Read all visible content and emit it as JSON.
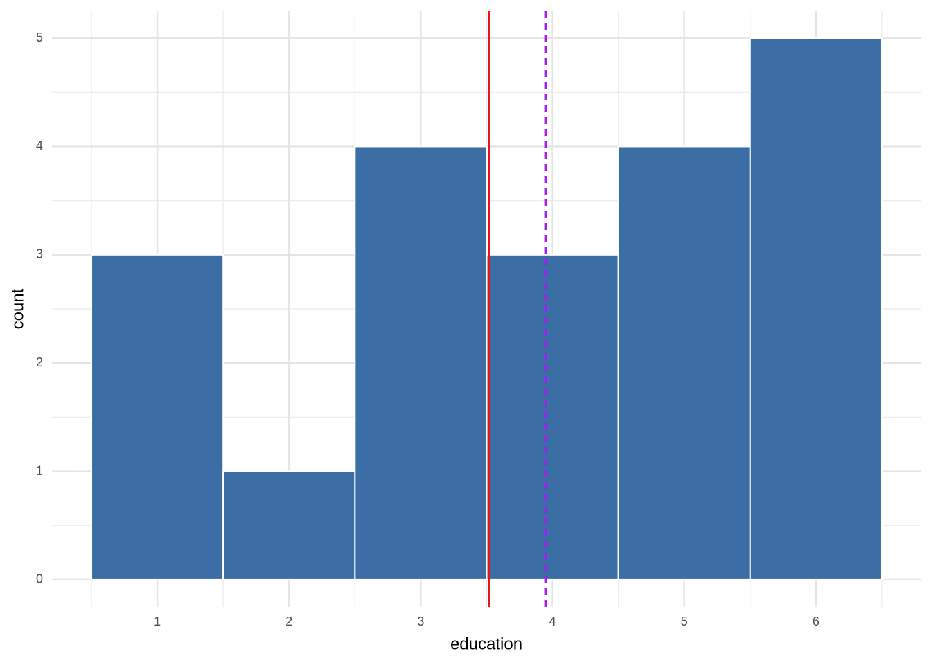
{
  "chart_data": {
    "type": "histogram",
    "x_label": "education",
    "y_label": "count",
    "bins": [
      0.5,
      1.5,
      2.5,
      3.5,
      4.5,
      5.5,
      6.5
    ],
    "values": [
      3,
      1,
      4,
      3,
      4,
      5
    ],
    "color": "#3a6ea5",
    "xlim": [
      0.2,
      6.8
    ],
    "ylim": [
      -0.25,
      5.25
    ],
    "xticks": [
      1,
      2,
      3,
      4,
      5,
      6
    ],
    "yticks": [
      0,
      1,
      2,
      3,
      4,
      5
    ],
    "x_minor_grid": [
      0.5,
      1.5,
      2.5,
      3.5,
      4.5,
      5.5,
      6.5
    ],
    "y_minor_grid": [
      0.5,
      1.5,
      2.5,
      3.5,
      4.5
    ],
    "grid": true,
    "vlines": [
      {
        "value": 3.52,
        "color": "#e8141c",
        "dashed": false
      },
      {
        "value": 3.95,
        "color": "#a020f0",
        "dashed": true
      }
    ]
  }
}
